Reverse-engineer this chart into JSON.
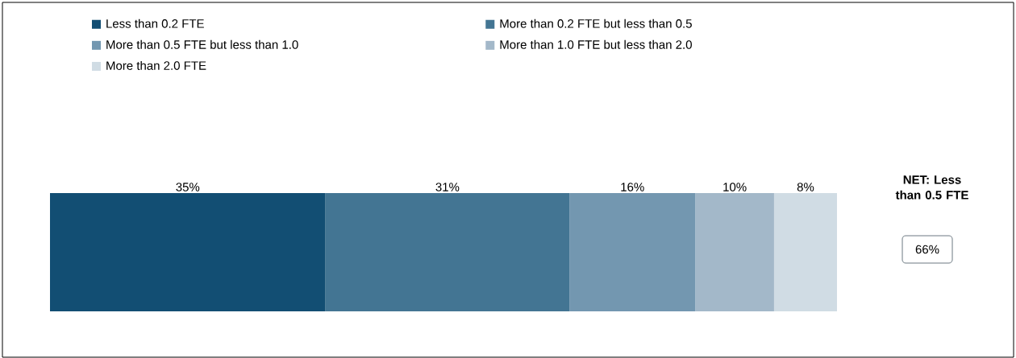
{
  "chart_data": {
    "type": "bar",
    "orientation": "horizontal",
    "stacked": true,
    "categories": [
      null
    ],
    "xlim": [
      0,
      100
    ],
    "tick_labels": false,
    "legend": "top",
    "data_labels": true,
    "series": [
      {
        "name": "Less than 0.2 FTE",
        "color": "#124e73",
        "values": [
          35
        ],
        "value_labels": [
          "35%"
        ]
      },
      {
        "name": "More than 0.2 FTE but less than 0.5",
        "color": "#437593",
        "values": [
          31
        ],
        "value_labels": [
          "31%"
        ]
      },
      {
        "name": "More than 0.5 FTE but less than 1.0",
        "color": "#7397b0",
        "values": [
          16
        ],
        "value_labels": [
          "16%"
        ]
      },
      {
        "name": "More than 1.0 FTE but less than 2.0",
        "color": "#a3b8c9",
        "values": [
          10
        ],
        "value_labels": [
          "10%"
        ]
      },
      {
        "name": "More than 2.0 FTE",
        "color": "#d0dce4",
        "values": [
          8
        ],
        "value_labels": [
          "8%"
        ]
      }
    ],
    "annotations": [
      "NET: Less than 0.5 FTE",
      "66%"
    ]
  }
}
